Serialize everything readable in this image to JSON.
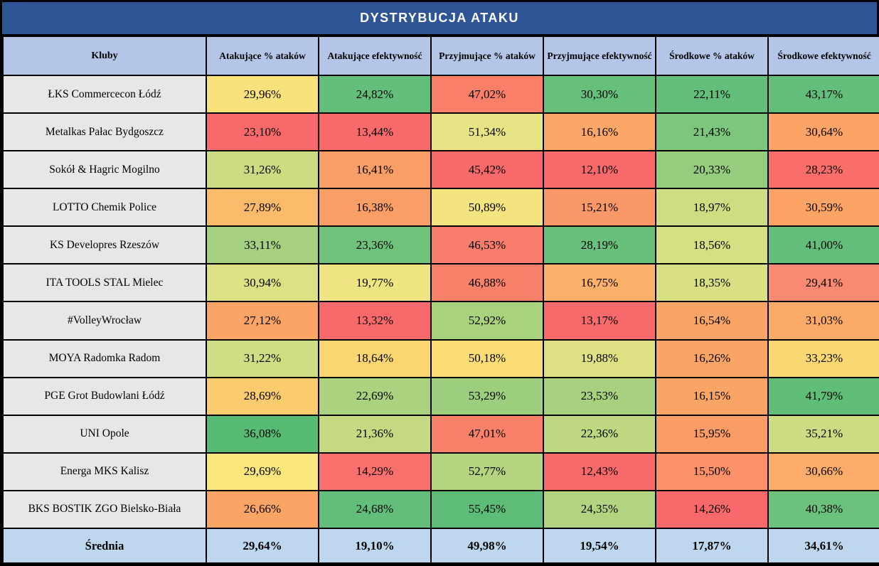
{
  "title": "DYSTRYBUCJA ATAKU",
  "colors": {
    "title_bg": "#2F5597",
    "title_text": "#FFFFFF",
    "header_bg": "#B4C6E7",
    "club_bg": "#E8E7E7",
    "average_bg": "#BDD7EE",
    "border": "#000000",
    "heat_red": "#F8696B",
    "heat_yellow": "#FFEB84",
    "heat_green": "#63BE7B"
  },
  "columns": [
    "Kluby",
    "Atakujące % ataków",
    "Atakujące efektywność",
    "Przyjmujące % ataków",
    "Przyjmujące efektywność",
    "Środkowe % ataków",
    "Środkowe efektywność"
  ],
  "rows": [
    {
      "club": "ŁKS Commercecon Łódź",
      "cells": [
        {
          "v": "29,96%",
          "c": "#F9E27C"
        },
        {
          "v": "24,82%",
          "c": "#63BE7B"
        },
        {
          "v": "47,02%",
          "c": "#F97F69"
        },
        {
          "v": "30,30%",
          "c": "#66BF7B"
        },
        {
          "v": "22,11%",
          "c": "#63BE7B"
        },
        {
          "v": "43,17%",
          "c": "#63BE7B"
        }
      ]
    },
    {
      "club": "Metalkas Pałac Bydgoszcz",
      "cells": [
        {
          "v": "23,10%",
          "c": "#F8696B"
        },
        {
          "v": "13,44%",
          "c": "#F8696B"
        },
        {
          "v": "51,34%",
          "c": "#E6E484"
        },
        {
          "v": "16,16%",
          "c": "#FBA767"
        },
        {
          "v": "21,43%",
          "c": "#7CC67D"
        },
        {
          "v": "30,64%",
          "c": "#FBA465"
        }
      ]
    },
    {
      "club": "Sokół & Hagric Mogilno",
      "cells": [
        {
          "v": "31,26%",
          "c": "#CDDC82"
        },
        {
          "v": "16,41%",
          "c": "#F99E67"
        },
        {
          "v": "45,42%",
          "c": "#F8696B"
        },
        {
          "v": "12,10%",
          "c": "#F8696B"
        },
        {
          "v": "20,33%",
          "c": "#96CC7E"
        },
        {
          "v": "28,23%",
          "c": "#F96E6B"
        }
      ]
    },
    {
      "club": "LOTTO Chemik Police",
      "cells": [
        {
          "v": "27,89%",
          "c": "#FBBB6B"
        },
        {
          "v": "16,38%",
          "c": "#F99E67"
        },
        {
          "v": "50,89%",
          "c": "#F3E480"
        },
        {
          "v": "15,21%",
          "c": "#FA9868"
        },
        {
          "v": "18,97%",
          "c": "#CFDD82"
        },
        {
          "v": "30,59%",
          "c": "#FBA465"
        }
      ]
    },
    {
      "club": "KS Developres Rzeszów",
      "cells": [
        {
          "v": "33,11%",
          "c": "#A5D07F"
        },
        {
          "v": "23,36%",
          "c": "#6FC27C"
        },
        {
          "v": "46,53%",
          "c": "#F97D6D"
        },
        {
          "v": "28,19%",
          "c": "#69C07B"
        },
        {
          "v": "18,56%",
          "c": "#D6DF83"
        },
        {
          "v": "41,00%",
          "c": "#63BE7B"
        }
      ]
    },
    {
      "club": "ITA TOOLS STAL Mielec",
      "cells": [
        {
          "v": "30,94%",
          "c": "#DCE183"
        },
        {
          "v": "19,77%",
          "c": "#EEE481"
        },
        {
          "v": "46,88%",
          "c": "#F9816A"
        },
        {
          "v": "16,75%",
          "c": "#FBB169"
        },
        {
          "v": "18,35%",
          "c": "#D8E083"
        },
        {
          "v": "29,41%",
          "c": "#F98970"
        }
      ]
    },
    {
      "club": "#VolleyWrocław",
      "cells": [
        {
          "v": "27,12%",
          "c": "#FAA466"
        },
        {
          "v": "13,32%",
          "c": "#F8696B"
        },
        {
          "v": "52,92%",
          "c": "#A9D27F"
        },
        {
          "v": "13,17%",
          "c": "#F8696B"
        },
        {
          "v": "16,54%",
          "c": "#FAA568"
        },
        {
          "v": "31,03%",
          "c": "#FBAB67"
        }
      ]
    },
    {
      "club": "MOYA Radomka Radom",
      "cells": [
        {
          "v": "31,22%",
          "c": "#D0DD82"
        },
        {
          "v": "18,64%",
          "c": "#FBD571"
        },
        {
          "v": "50,18%",
          "c": "#F9DC74"
        },
        {
          "v": "19,88%",
          "c": "#DDE183"
        },
        {
          "v": "16,26%",
          "c": "#FAA466"
        },
        {
          "v": "33,23%",
          "c": "#F9D873"
        }
      ]
    },
    {
      "club": "PGE Grot Budowlani Łódź",
      "cells": [
        {
          "v": "28,69%",
          "c": "#FBCC6E"
        },
        {
          "v": "22,69%",
          "c": "#ABD27F"
        },
        {
          "v": "53,29%",
          "c": "#9DCE7E"
        },
        {
          "v": "23,53%",
          "c": "#A7D17F"
        },
        {
          "v": "16,15%",
          "c": "#FAA466"
        },
        {
          "v": "41,79%",
          "c": "#5FBD78"
        }
      ]
    },
    {
      "club": "UNI Opole",
      "cells": [
        {
          "v": "36,08%",
          "c": "#58BB74"
        },
        {
          "v": "21,36%",
          "c": "#C4D981"
        },
        {
          "v": "47,01%",
          "c": "#F98069"
        },
        {
          "v": "22,36%",
          "c": "#BFD780"
        },
        {
          "v": "15,95%",
          "c": "#FA9C65"
        },
        {
          "v": "35,21%",
          "c": "#CDDC82"
        }
      ]
    },
    {
      "club": "Energa MKS Kalisz",
      "cells": [
        {
          "v": "29,69%",
          "c": "#F9E67D"
        },
        {
          "v": "14,29%",
          "c": "#F9706C"
        },
        {
          "v": "52,77%",
          "c": "#B4D480"
        },
        {
          "v": "12,43%",
          "c": "#F8696B"
        },
        {
          "v": "15,50%",
          "c": "#FA9168"
        },
        {
          "v": "30,66%",
          "c": "#FBAC68"
        }
      ]
    },
    {
      "club": "BKS BOSTIK ZGO Bielsko-Biała",
      "cells": [
        {
          "v": "26,66%",
          "c": "#FAA466"
        },
        {
          "v": "24,68%",
          "c": "#63BE7B"
        },
        {
          "v": "55,45%",
          "c": "#5DBC77"
        },
        {
          "v": "24,35%",
          "c": "#B2D480"
        },
        {
          "v": "14,26%",
          "c": "#F8696B"
        },
        {
          "v": "40,38%",
          "c": "#6CC17C"
        }
      ]
    }
  ],
  "average": {
    "label": "Średnia",
    "values": [
      "29,64%",
      "19,10%",
      "49,98%",
      "19,54%",
      "17,87%",
      "34,61%"
    ]
  },
  "chart_data": {
    "type": "table",
    "title": "DYSTRYBUCJA ATAKU",
    "columns": [
      "Kluby",
      "Atakujące % ataków",
      "Atakujące efektywność",
      "Przyjmujące % ataków",
      "Przyjmujące efektywność",
      "Środkowe % ataków",
      "Środkowe efektywność"
    ],
    "rows": [
      [
        "ŁKS Commercecon Łódź",
        29.96,
        24.82,
        47.02,
        30.3,
        22.11,
        43.17
      ],
      [
        "Metalkas Pałac Bydgoszcz",
        23.1,
        13.44,
        51.34,
        16.16,
        21.43,
        30.64
      ],
      [
        "Sokół & Hagric Mogilno",
        31.26,
        16.41,
        45.42,
        12.1,
        20.33,
        28.23
      ],
      [
        "LOTTO Chemik Police",
        27.89,
        16.38,
        50.89,
        15.21,
        18.97,
        30.59
      ],
      [
        "KS Developres Rzeszów",
        33.11,
        23.36,
        46.53,
        28.19,
        18.56,
        41.0
      ],
      [
        "ITA TOOLS STAL Mielec",
        30.94,
        19.77,
        46.88,
        16.75,
        18.35,
        29.41
      ],
      [
        "#VolleyWrocław",
        27.12,
        13.32,
        52.92,
        13.17,
        16.54,
        31.03
      ],
      [
        "MOYA Radomka Radom",
        31.22,
        18.64,
        50.18,
        19.88,
        16.26,
        33.23
      ],
      [
        "PGE Grot Budowlani Łódź",
        28.69,
        22.69,
        53.29,
        23.53,
        16.15,
        41.79
      ],
      [
        "UNI Opole",
        36.08,
        21.36,
        47.01,
        22.36,
        15.95,
        35.21
      ],
      [
        "Energa MKS Kalisz",
        29.69,
        14.29,
        52.77,
        12.43,
        15.5,
        30.66
      ],
      [
        "BKS BOSTIK ZGO Bielsko-Biała",
        26.66,
        24.68,
        55.45,
        24.35,
        14.26,
        40.38
      ]
    ],
    "average_row": [
      "Średnia",
      29.64,
      19.1,
      49.98,
      19.54,
      17.87,
      34.61
    ],
    "units": "percent",
    "formatting": "per-column heatmap, red (low) → yellow → green (high)"
  }
}
